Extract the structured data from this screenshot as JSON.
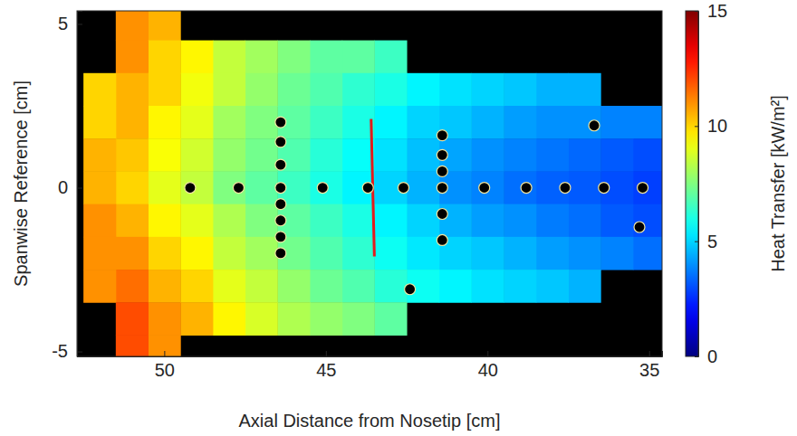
{
  "chart_data": {
    "type": "heatmap",
    "x_label": "Axial Distance from Nosetip [cm]",
    "y_label": "Spanwise Reference [cm]",
    "xlim": [
      52.7,
      34.6
    ],
    "xticks": [
      50,
      45,
      40,
      35
    ],
    "ylim": [
      -5.15,
      5.4
    ],
    "yticks": [
      5,
      0,
      -5
    ],
    "x": [
      35,
      36,
      37,
      38,
      39,
      40,
      41,
      42,
      43,
      44,
      45,
      46,
      47,
      48,
      49,
      50,
      51,
      52
    ],
    "y": [
      5,
      4,
      3,
      2,
      1,
      0,
      -1,
      -2,
      -3,
      -4,
      -5
    ],
    "values": [
      [
        null,
        null,
        null,
        null,
        null,
        null,
        null,
        null,
        null,
        null,
        null,
        null,
        null,
        null,
        null,
        10.5,
        11,
        null
      ],
      [
        null,
        null,
        null,
        null,
        null,
        null,
        null,
        null,
        6.5,
        7,
        7,
        7.5,
        8,
        8.5,
        9.5,
        10,
        11,
        null
      ],
      [
        null,
        null,
        4.5,
        4.5,
        4.8,
        5,
        5.2,
        5.5,
        6,
        6.3,
        6.8,
        7.2,
        7.8,
        8.5,
        9.2,
        10,
        10.5,
        10
      ],
      [
        3.8,
        3.8,
        4,
        4,
        4.2,
        4.5,
        4.8,
        5,
        5.5,
        6,
        6.5,
        7,
        7.5,
        8,
        9,
        9.5,
        10.5,
        10
      ],
      [
        3,
        3.2,
        3.4,
        3.6,
        3.8,
        4,
        4.3,
        4.7,
        5.2,
        5.7,
        6.2,
        6.8,
        7.3,
        7.8,
        8.7,
        9.3,
        10.2,
        10.5
      ],
      [
        2.8,
        3,
        3.2,
        3.3,
        3.5,
        3.8,
        4,
        4.5,
        5,
        5.5,
        6,
        6.5,
        7,
        7.5,
        8.5,
        9,
        10,
        10.5
      ],
      [
        3,
        3.2,
        3.5,
        3.7,
        4,
        4.2,
        4.5,
        5,
        5.5,
        6,
        6.5,
        7,
        7.5,
        8.2,
        9,
        9.5,
        10.5,
        11
      ],
      [
        3.5,
        3.8,
        4,
        4.2,
        4.5,
        4.8,
        5,
        5.3,
        5.8,
        6.3,
        6.8,
        7.3,
        8,
        8.5,
        9.5,
        10,
        11,
        11
      ],
      [
        null,
        null,
        4.5,
        4.8,
        5,
        5.2,
        5.5,
        5.8,
        6.2,
        6.8,
        7.2,
        7.8,
        8.5,
        9,
        10,
        10.5,
        11.5,
        11
      ],
      [
        null,
        null,
        null,
        null,
        null,
        null,
        null,
        null,
        7,
        7.5,
        7.8,
        8.2,
        8.8,
        9.5,
        10.5,
        11,
        12,
        null
      ],
      [
        null,
        null,
        null,
        null,
        null,
        null,
        null,
        null,
        null,
        null,
        null,
        null,
        null,
        null,
        null,
        11,
        12,
        null
      ]
    ],
    "colorbar": {
      "label": "Heat Transfer [kW/m²]",
      "range": [
        0,
        15
      ],
      "ticks": [
        0,
        5,
        10,
        15
      ]
    },
    "sensors": {
      "x": [
        49.2,
        47.7,
        45.1,
        43.7,
        42.6,
        40.1,
        38.8,
        37.6,
        36.4,
        35.2,
        46.4,
        46.4,
        46.4,
        46.4,
        46.4,
        46.4,
        46.4,
        46.4,
        41.4,
        41.4,
        41.4,
        41.4,
        41.4,
        41.4,
        36.7,
        35.3,
        42.4
      ],
      "y": [
        0,
        0,
        0,
        0,
        0,
        0,
        0,
        0,
        0,
        0,
        2,
        1.4,
        0.7,
        0,
        -0.5,
        -1,
        -1.5,
        -2,
        1.6,
        1,
        0.5,
        0,
        -0.8,
        -1.6,
        1.9,
        -1.2,
        -3.1
      ]
    },
    "overlay_line": {
      "x": [
        43.6,
        43.5
      ],
      "y": [
        2.1,
        -2.1
      ],
      "color": "#e31a1c"
    }
  }
}
